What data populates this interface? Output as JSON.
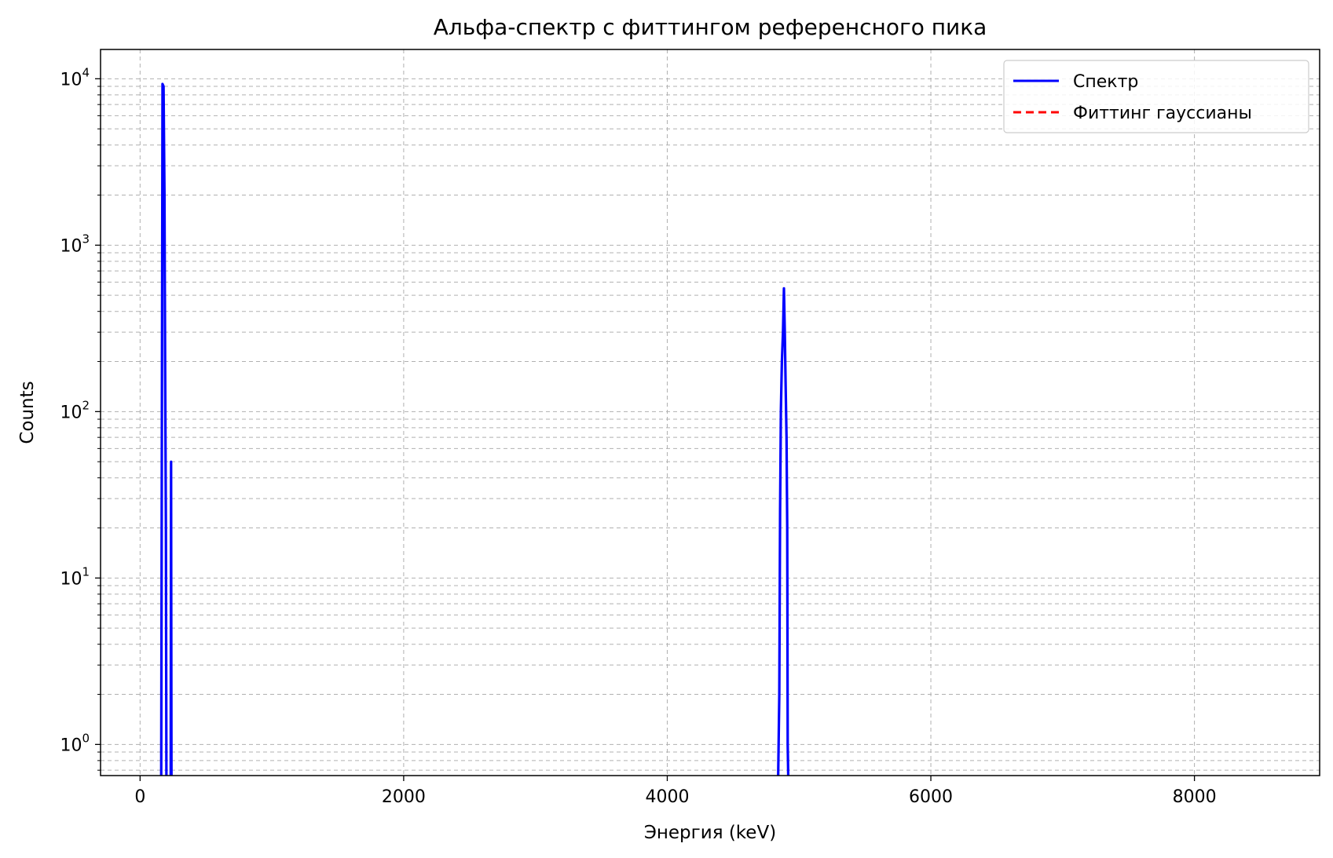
{
  "chart_data": {
    "type": "line",
    "title": "Альфа-спектр с фиттингом референсного пика",
    "xlabel": "Энергия (keV)",
    "ylabel": "Counts",
    "xlim": [
      -300,
      8950
    ],
    "ylim": [
      0.65,
      15000
    ],
    "yscale": "log",
    "xticks": [
      0,
      2000,
      4000,
      6000,
      8000
    ],
    "xtick_labels": [
      "0",
      "2000",
      "4000",
      "6000",
      "8000"
    ],
    "yticks": [
      1,
      10,
      100,
      1000,
      10000
    ],
    "ytick_labels": [
      {
        "base": "10",
        "exp": "0"
      },
      {
        "base": "10",
        "exp": "1"
      },
      {
        "base": "10",
        "exp": "2"
      },
      {
        "base": "10",
        "exp": "3"
      },
      {
        "base": "10",
        "exp": "4"
      }
    ],
    "grid": true,
    "legend_position": "top-right",
    "series": [
      {
        "name": "Спектр",
        "color": "#0000ff",
        "style": "solid",
        "segments": [
          [
            [
              160,
              0.1
            ],
            [
              170,
              9300
            ],
            [
              178,
              9000
            ],
            [
              185,
              2000
            ],
            [
              190,
              200
            ],
            [
              196,
              20
            ],
            [
              200,
              0.1
            ]
          ],
          [
            [
              232,
              0.1
            ],
            [
              235,
              50
            ],
            [
              238,
              0.1
            ]
          ],
          [
            [
              4840,
              0.1
            ],
            [
              4850,
              2
            ],
            [
              4856,
              25
            ],
            [
              4862,
              100
            ],
            [
              4870,
              200
            ],
            [
              4878,
              300
            ],
            [
              4885,
              550
            ],
            [
              4892,
              300
            ],
            [
              4898,
              150
            ],
            [
              4905,
              70
            ],
            [
              4910,
              20
            ],
            [
              4914,
              1
            ],
            [
              4920,
              0.1
            ]
          ]
        ]
      },
      {
        "name": "Фиттинг гауссианы",
        "color": "#ff0000",
        "style": "dashed",
        "segments": []
      }
    ]
  }
}
